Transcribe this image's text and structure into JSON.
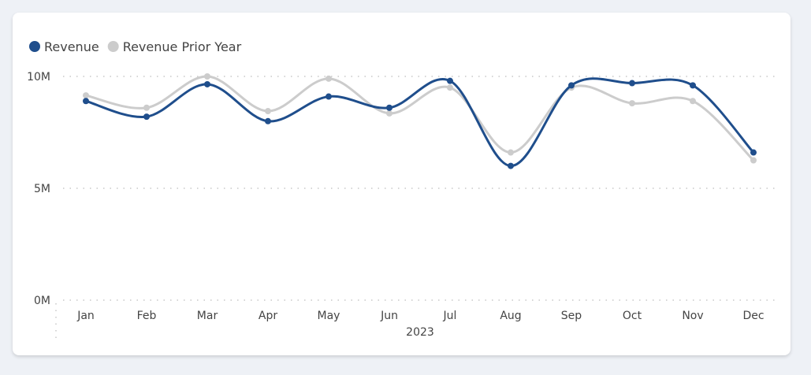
{
  "chart_data": {
    "type": "line",
    "title": "",
    "xlabel": "2023",
    "ylabel": "",
    "categories": [
      "Jan",
      "Feb",
      "Mar",
      "Apr",
      "May",
      "Jun",
      "Jul",
      "Aug",
      "Sep",
      "Oct",
      "Nov",
      "Dec"
    ],
    "yticks": [
      {
        "value": 0,
        "label": "0M"
      },
      {
        "value": 5,
        "label": "5M"
      },
      {
        "value": 10,
        "label": "10M"
      }
    ],
    "ylim": [
      0,
      10
    ],
    "unit": "M",
    "grid": true,
    "legend_position": "top-left",
    "smooth": true,
    "series": [
      {
        "name": "Revenue",
        "color": "#1f4e8c",
        "values": [
          8.9,
          8.2,
          9.65,
          8.0,
          9.1,
          8.6,
          9.8,
          6.0,
          9.6,
          9.7,
          9.6,
          6.6
        ]
      },
      {
        "name": "Revenue Prior Year",
        "color": "#cccccc",
        "values": [
          9.15,
          8.6,
          10.0,
          8.45,
          9.9,
          8.35,
          9.5,
          6.6,
          9.5,
          8.8,
          8.9,
          6.25
        ]
      }
    ]
  }
}
